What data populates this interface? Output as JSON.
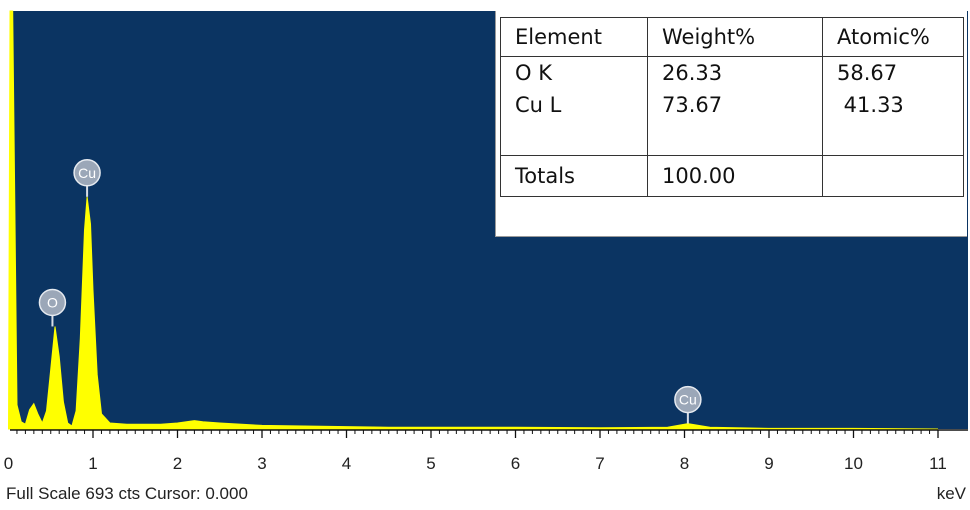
{
  "chart_data": {
    "type": "line",
    "title": "",
    "xlabel": "keV",
    "ylabel": "",
    "xlim": [
      0,
      11.1
    ],
    "ylim": [
      0,
      693
    ],
    "x_ticks": [
      "0",
      "1",
      "2",
      "3",
      "4",
      "5",
      "6",
      "7",
      "8",
      "9",
      "10",
      "11"
    ],
    "series": [
      {
        "x": [
          0.0,
          0.05,
          0.1,
          0.15,
          0.2,
          0.25,
          0.3,
          0.35,
          0.4,
          0.45,
          0.5,
          0.55,
          0.6,
          0.65,
          0.7,
          0.75,
          0.8,
          0.85,
          0.9,
          0.93,
          0.97,
          1.0,
          1.05,
          1.1,
          1.2,
          1.4,
          1.6,
          1.8,
          2.0,
          2.2,
          2.3,
          2.5,
          3.0,
          3.5,
          4.0,
          4.5,
          5.0,
          6.0,
          7.0,
          7.8,
          8.04,
          8.3,
          9.0,
          10.0,
          11.0
        ],
        "values": [
          693,
          693,
          40,
          12,
          8,
          32,
          42,
          24,
          10,
          30,
          100,
          170,
          120,
          45,
          10,
          5,
          30,
          150,
          330,
          385,
          340,
          230,
          90,
          25,
          10,
          8,
          8,
          8,
          10,
          14,
          12,
          10,
          6,
          5,
          4,
          3,
          3,
          3,
          2,
          3,
          9,
          3,
          1,
          1,
          0
        ]
      }
    ],
    "peak_labels": [
      {
        "text": "Cu",
        "x": 0.93,
        "y": 385
      },
      {
        "text": "O",
        "x": 0.52,
        "y": 170
      },
      {
        "text": "Cu",
        "x": 8.04,
        "y": 9
      }
    ],
    "colors": {
      "background": "#0b3462",
      "trace": "#ffff00",
      "badge": "#9ba7b8"
    }
  },
  "table": {
    "headers": [
      "Element",
      "Weight%",
      "Atomic%"
    ],
    "rows": [
      [
        "O K",
        "26.33",
        "58.67"
      ],
      [
        "Cu L",
        "73.67",
        " 41.33"
      ],
      [
        "",
        "",
        ""
      ]
    ],
    "totals": [
      "Totals",
      "100.00",
      ""
    ]
  },
  "status_line": "Full Scale 693 cts Cursor: 0.000",
  "unit_label": "keV"
}
